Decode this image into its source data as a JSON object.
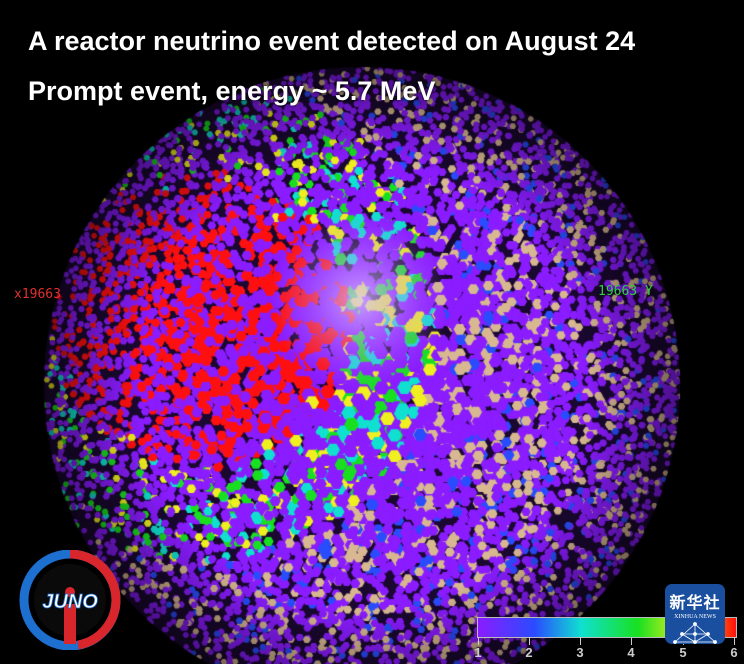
{
  "title": {
    "line1": "A reactor neutrino event detected on August 24",
    "line2": "Prompt event, energy ~ 5.7 MeV"
  },
  "axis_labels": {
    "x": "x19663",
    "y": "19663 Y"
  },
  "colorbar": {
    "ticks": [
      "1",
      "2",
      "3",
      "4",
      "5",
      "6"
    ],
    "colors": [
      "#8a1cff",
      "#2a4cff",
      "#10e0d0",
      "#18e020",
      "#f0f020",
      "#ff1010"
    ]
  },
  "logos": {
    "juno": "JUNO",
    "xinhua_cn": "新华社",
    "xinhua_en": "XINHUA NEWS"
  },
  "colors": {
    "background": "#000000",
    "pmt_base": "#7a2ad8",
    "hit_cluster": "#c81010",
    "wire": "#d8b890"
  }
}
